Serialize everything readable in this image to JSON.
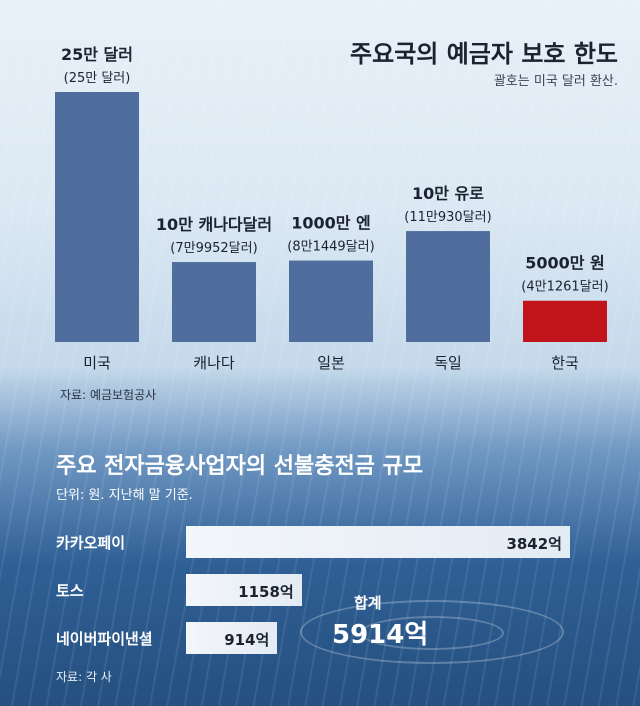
{
  "chart_data": [
    {
      "type": "bar",
      "title": "주요국의 예금자 보호 한도",
      "subtitle": "괄호는 미국 달러 환산.",
      "categories": [
        "미국",
        "캐나다",
        "일본",
        "독일",
        "한국"
      ],
      "labels": [
        "25만 달러",
        "10만 캐나다달러",
        "1000만 엔",
        "10만 유로",
        "5000만 원"
      ],
      "usd_labels": [
        "(25만 달러)",
        "(7만9952달러)",
        "(8만1449달러)",
        "(11만930달러)",
        "(4만1261달러)"
      ],
      "values": [
        250000,
        79952,
        81449,
        110930,
        41261
      ],
      "colors": [
        "#4f6e9e",
        "#4f6e9e",
        "#4f6e9e",
        "#4f6e9e",
        "#c0131a"
      ],
      "source": "자료: 예금보험공사"
    },
    {
      "type": "bar",
      "orientation": "horizontal",
      "title": "주요 전자금융사업자의 선불충전금 규모",
      "subtitle": "단위: 원. 지난해 말 기준.",
      "categories": [
        "카카오페이",
        "토스",
        "네이버파이낸셜"
      ],
      "values": [
        3842,
        1158,
        914
      ],
      "value_labels": [
        "3842억",
        "1158억",
        "914억"
      ],
      "total_label": "합계",
      "total_value": "5914억",
      "source": "자료: 각 사"
    }
  ]
}
